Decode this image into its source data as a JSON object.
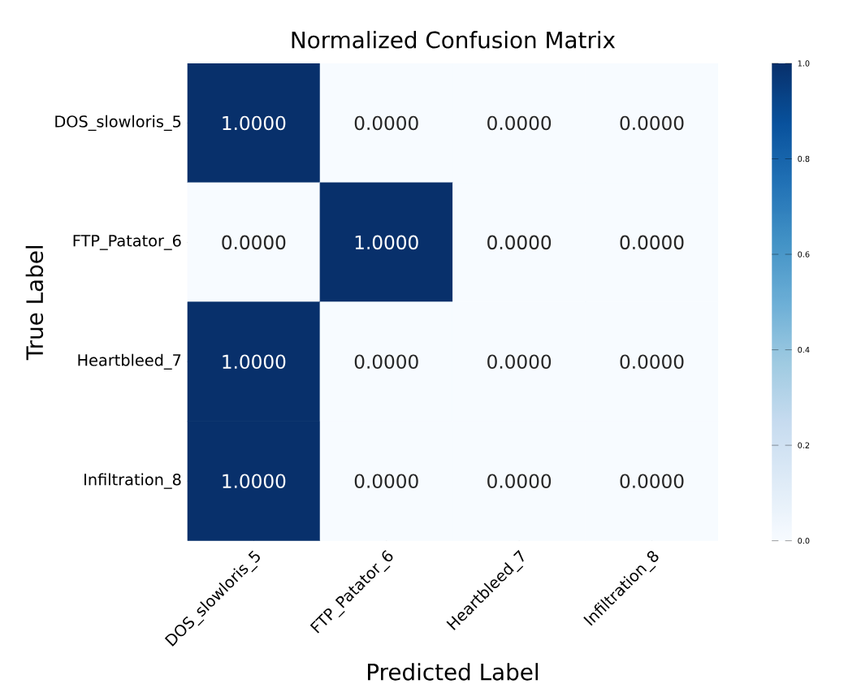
{
  "chart_data": {
    "type": "heatmap",
    "title": "Normalized Confusion Matrix",
    "xlabel": "Predicted Label",
    "ylabel": "True Label",
    "categories": [
      "DOS_slowloris_5",
      "FTP_Patator_6",
      "Heartbleed_7",
      "Infiltration_8"
    ],
    "y_categories": [
      "DOS_slowloris_5",
      "FTP_Patator_6",
      "Heartbleed_7",
      "Infiltration_8"
    ],
    "cells": [
      [
        1,
        0,
        0,
        0
      ],
      [
        0,
        1,
        0,
        0
      ],
      [
        1,
        0,
        0,
        0
      ],
      [
        1,
        0,
        0,
        0
      ]
    ],
    "cell_labels": [
      [
        "1.0000",
        "0.0000",
        "0.0000",
        "0.0000"
      ],
      [
        "0.0000",
        "1.0000",
        "0.0000",
        "0.0000"
      ],
      [
        "1.0000",
        "0.0000",
        "0.0000",
        "0.0000"
      ],
      [
        "1.0000",
        "0.0000",
        "0.0000",
        "0.0000"
      ]
    ],
    "clim": [
      0,
      1
    ],
    "cticks": [
      {
        "value": 0,
        "label": "0.0"
      },
      {
        "value": 0.2,
        "label": "0.2"
      },
      {
        "value": 0.4,
        "label": "0.4"
      },
      {
        "value": 0.6,
        "label": "0.6"
      },
      {
        "value": 0.8,
        "label": "0.8"
      },
      {
        "value": 1,
        "label": "1.0"
      }
    ]
  }
}
